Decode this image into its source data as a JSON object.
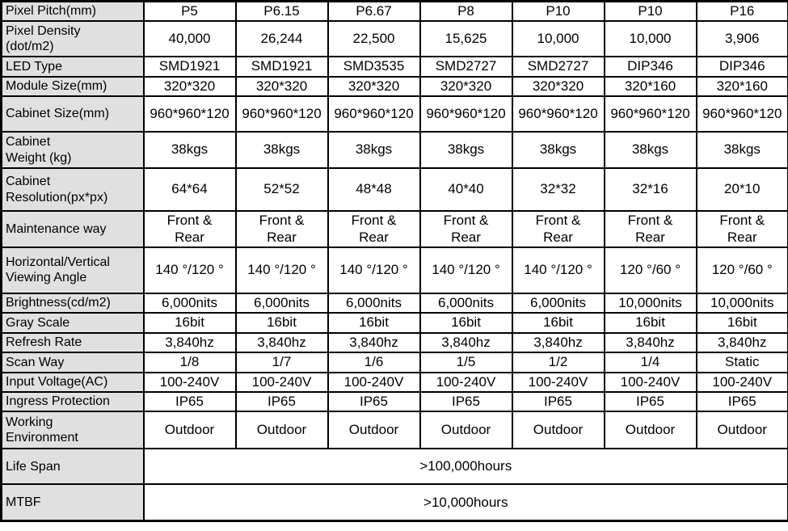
{
  "colors": {
    "header_fill": "#e0e0e0",
    "border": "#000000",
    "text": "#000000",
    "background": "#ffffff"
  },
  "table": {
    "columns": [
      "P5",
      "P6.15",
      "P6.67",
      "P8",
      "P10",
      "P10",
      "P16"
    ],
    "rows": [
      {
        "label": "Pixel Pitch(mm)",
        "values": [
          "P5",
          "P6.15",
          "P6.67",
          "P8",
          "P10",
          "P10",
          "P16"
        ]
      },
      {
        "label": "Pixel Density\n(dot/m2)",
        "values": [
          "40,000",
          "26,244",
          "22,500",
          "15,625",
          "10,000",
          "10,000",
          "3,906"
        ]
      },
      {
        "label": "LED Type",
        "values": [
          "SMD1921",
          "SMD1921",
          "SMD3535",
          "SMD2727",
          "SMD2727",
          "DIP346",
          "DIP346"
        ]
      },
      {
        "label": "Module Size(mm)",
        "values": [
          "320*320",
          "320*320",
          "320*320",
          "320*320",
          "320*320",
          "320*160",
          "320*160"
        ]
      },
      {
        "label": "Cabinet Size(mm)",
        "values": [
          "960*960*120",
          "960*960*120",
          "960*960*120",
          "960*960*120",
          "960*960*120",
          "960*960*120",
          "960*960*120"
        ]
      },
      {
        "label": "Cabinet\nWeight (kg)",
        "values": [
          "38kgs",
          "38kgs",
          "38kgs",
          "38kgs",
          "38kgs",
          "38kgs",
          "38kgs"
        ]
      },
      {
        "label": "Cabinet\nResolution(px*px)",
        "values": [
          "64*64",
          "52*52",
          "48*48",
          "40*40",
          "32*32",
          "32*16",
          "20*10"
        ]
      },
      {
        "label": "Maintenance way",
        "values": [
          "Front & Rear",
          "Front & Rear",
          "Front & Rear",
          "Front & Rear",
          "Front & Rear",
          "Front & Rear",
          "Front & Rear"
        ]
      },
      {
        "label": "Horizontal/Vertical\nViewing Angle",
        "values": [
          "140 °/120 °",
          "140 °/120 °",
          "140 °/120 °",
          "140 °/120 °",
          "140 °/120 °",
          "120 °/60 °",
          "120 °/60 °"
        ]
      },
      {
        "label": "Brightness(cd/m2)",
        "values": [
          "6,000nits",
          "6,000nits",
          "6,000nits",
          "6,000nits",
          "6,000nits",
          "10,000nits",
          "10,000nits"
        ]
      },
      {
        "label": "Gray Scale",
        "values": [
          "16bit",
          "16bit",
          "16bit",
          "16bit",
          "16bit",
          "16bit",
          "16bit"
        ]
      },
      {
        "label": "Refresh Rate",
        "values": [
          "3,840hz",
          "3,840hz",
          "3,840hz",
          "3,840hz",
          "3,840hz",
          "3,840hz",
          "3,840hz"
        ]
      },
      {
        "label": "Scan Way",
        "values": [
          "1/8",
          "1/7",
          "1/6",
          "1/5",
          "1/2",
          "1/4",
          "Static"
        ]
      },
      {
        "label": "Input Voltage(AC)",
        "values": [
          "100-240V",
          "100-240V",
          "100-240V",
          "100-240V",
          "100-240V",
          "100-240V",
          "100-240V"
        ]
      },
      {
        "label": "Ingress Protection",
        "values": [
          "IP65",
          "IP65",
          "IP65",
          "IP65",
          "IP65",
          "IP65",
          "IP65"
        ]
      },
      {
        "label": "Working\nEnvironment",
        "values": [
          "Outdoor",
          "Outdoor",
          "Outdoor",
          "Outdoor",
          "Outdoor",
          "Outdoor",
          "Outdoor"
        ]
      },
      {
        "label": "Life Span",
        "value_span": ">100,000hours"
      },
      {
        "label": "MTBF",
        "value_span": ">10,000hours"
      }
    ]
  }
}
